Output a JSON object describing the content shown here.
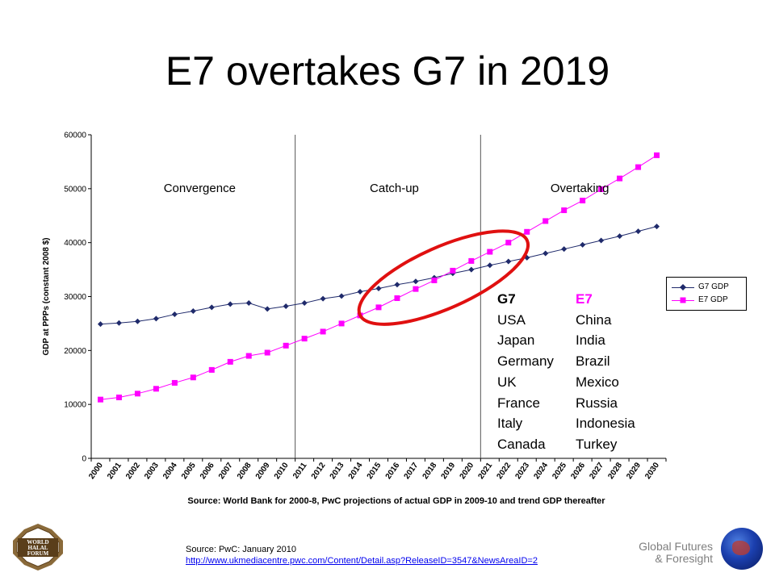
{
  "slide": {
    "title": "E7 overtakes G7 in 2019"
  },
  "chart_data": {
    "type": "line",
    "x": [
      "2000",
      "2001",
      "2002",
      "2003",
      "2004",
      "2005",
      "2006",
      "2007",
      "2008",
      "2009",
      "2010",
      "2011",
      "2012",
      "2013",
      "2014",
      "2015",
      "2016",
      "2017",
      "2018",
      "2019",
      "2020",
      "2021",
      "2022",
      "2023",
      "2024",
      "2025",
      "2026",
      "2027",
      "2028",
      "2029",
      "2030"
    ],
    "series": [
      {
        "name": "G7 GDP",
        "color": "#1f2a6b",
        "marker": "diamond",
        "values": [
          24900,
          25100,
          25400,
          25900,
          26700,
          27300,
          28000,
          28600,
          28800,
          27700,
          28200,
          28800,
          29600,
          30100,
          30900,
          31500,
          32200,
          32800,
          33500,
          34300,
          35000,
          35800,
          36500,
          37200,
          38000,
          38800,
          39600,
          40400,
          41200,
          42100,
          43000
        ]
      },
      {
        "name": "E7 GDP",
        "color": "#ff00ff",
        "marker": "square",
        "values": [
          10900,
          11300,
          12000,
          12900,
          14000,
          15000,
          16400,
          17900,
          19000,
          19600,
          20900,
          22200,
          23500,
          25000,
          26500,
          28000,
          29700,
          31400,
          33000,
          34800,
          36600,
          38300,
          40000,
          42000,
          44000,
          46000,
          47800,
          49900,
          51900,
          54000,
          56200
        ]
      }
    ],
    "ylabel": "GDP at PPPs (constant 2008 $)",
    "xlabel": "Source: World Bank for 2000-8, PwC projections of actual GDP in 2009-10 and trend GDP thereafter",
    "ylim": [
      0,
      60000
    ],
    "yticks": [
      0,
      10000,
      20000,
      30000,
      40000,
      50000,
      60000
    ],
    "grid": false,
    "legend_position": "right",
    "phase_dividers_after": [
      "2010",
      "2020"
    ],
    "phase_labels": [
      "Convergence",
      "Catch-up",
      "Overtaking"
    ],
    "highlight_ellipse": {
      "color": "#e01010",
      "x_from": "2014",
      "x_to": "2023",
      "y_center": 33500
    }
  },
  "groups": {
    "g7": {
      "heading": "G7",
      "members": [
        "USA",
        "Japan",
        "Germany",
        "UK",
        "France",
        "Italy",
        "Canada"
      ]
    },
    "e7": {
      "heading": "E7",
      "members": [
        "China",
        "India",
        "Brazil",
        "Mexico",
        "Russia",
        "Indonesia",
        "Turkey"
      ]
    }
  },
  "footer": {
    "logo_text_1": "WORLD",
    "logo_text_2": "HALAL",
    "logo_text_3": "FORUM",
    "source_label": "Source: PwC: January 2010",
    "source_url": "http://www.ukmediacentre.pwc.com/Content/Detail.asp?ReleaseID=3547&NewsAreaID=2",
    "org_line1": "Global Futures",
    "org_line2": "& Foresight"
  }
}
